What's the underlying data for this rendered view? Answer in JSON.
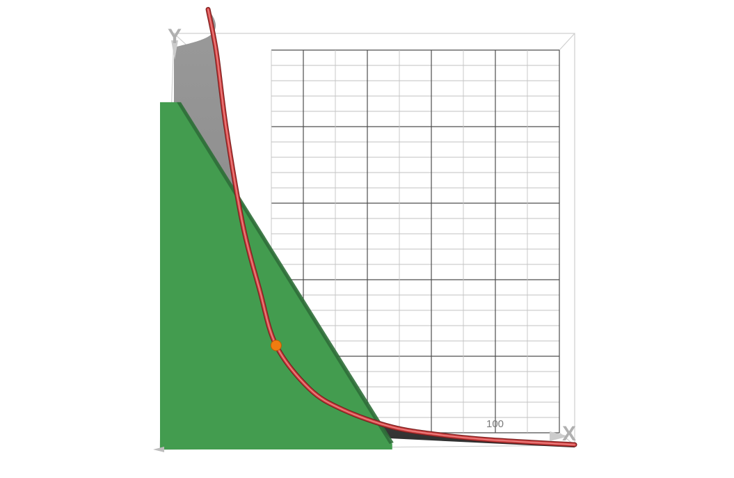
{
  "chart_data": {
    "type": "area",
    "view": "3d-box",
    "axis_labels": {
      "x": "X",
      "y": "Y"
    },
    "tick_labels": {
      "x": [
        "100"
      ]
    },
    "xlim": [
      0,
      125
    ],
    "ylim": [
      0,
      260
    ],
    "grid": true,
    "budget_line": {
      "x": [
        0,
        70
      ],
      "y": [
        217,
        0
      ]
    },
    "tangent_point": {
      "x": 35,
      "y": 65
    },
    "indifference_curve": {
      "x": [
        14.5,
        17,
        20,
        25,
        30,
        35,
        45,
        55,
        70,
        85,
        100,
        125
      ],
      "y": [
        275,
        248,
        200,
        140,
        100,
        65,
        38,
        25,
        14,
        9,
        6,
        3
      ]
    },
    "colors": {
      "budget_set": "#439c4f",
      "indifference_curve": "#c83c3c",
      "surface_upper": "#919191",
      "surface_lower": "#3a3a3a",
      "tangent_point": "#f07c10",
      "grid_major": "#4d4d4d",
      "grid_minor": "#c2c2c2",
      "box": "#c8c8c8"
    }
  }
}
